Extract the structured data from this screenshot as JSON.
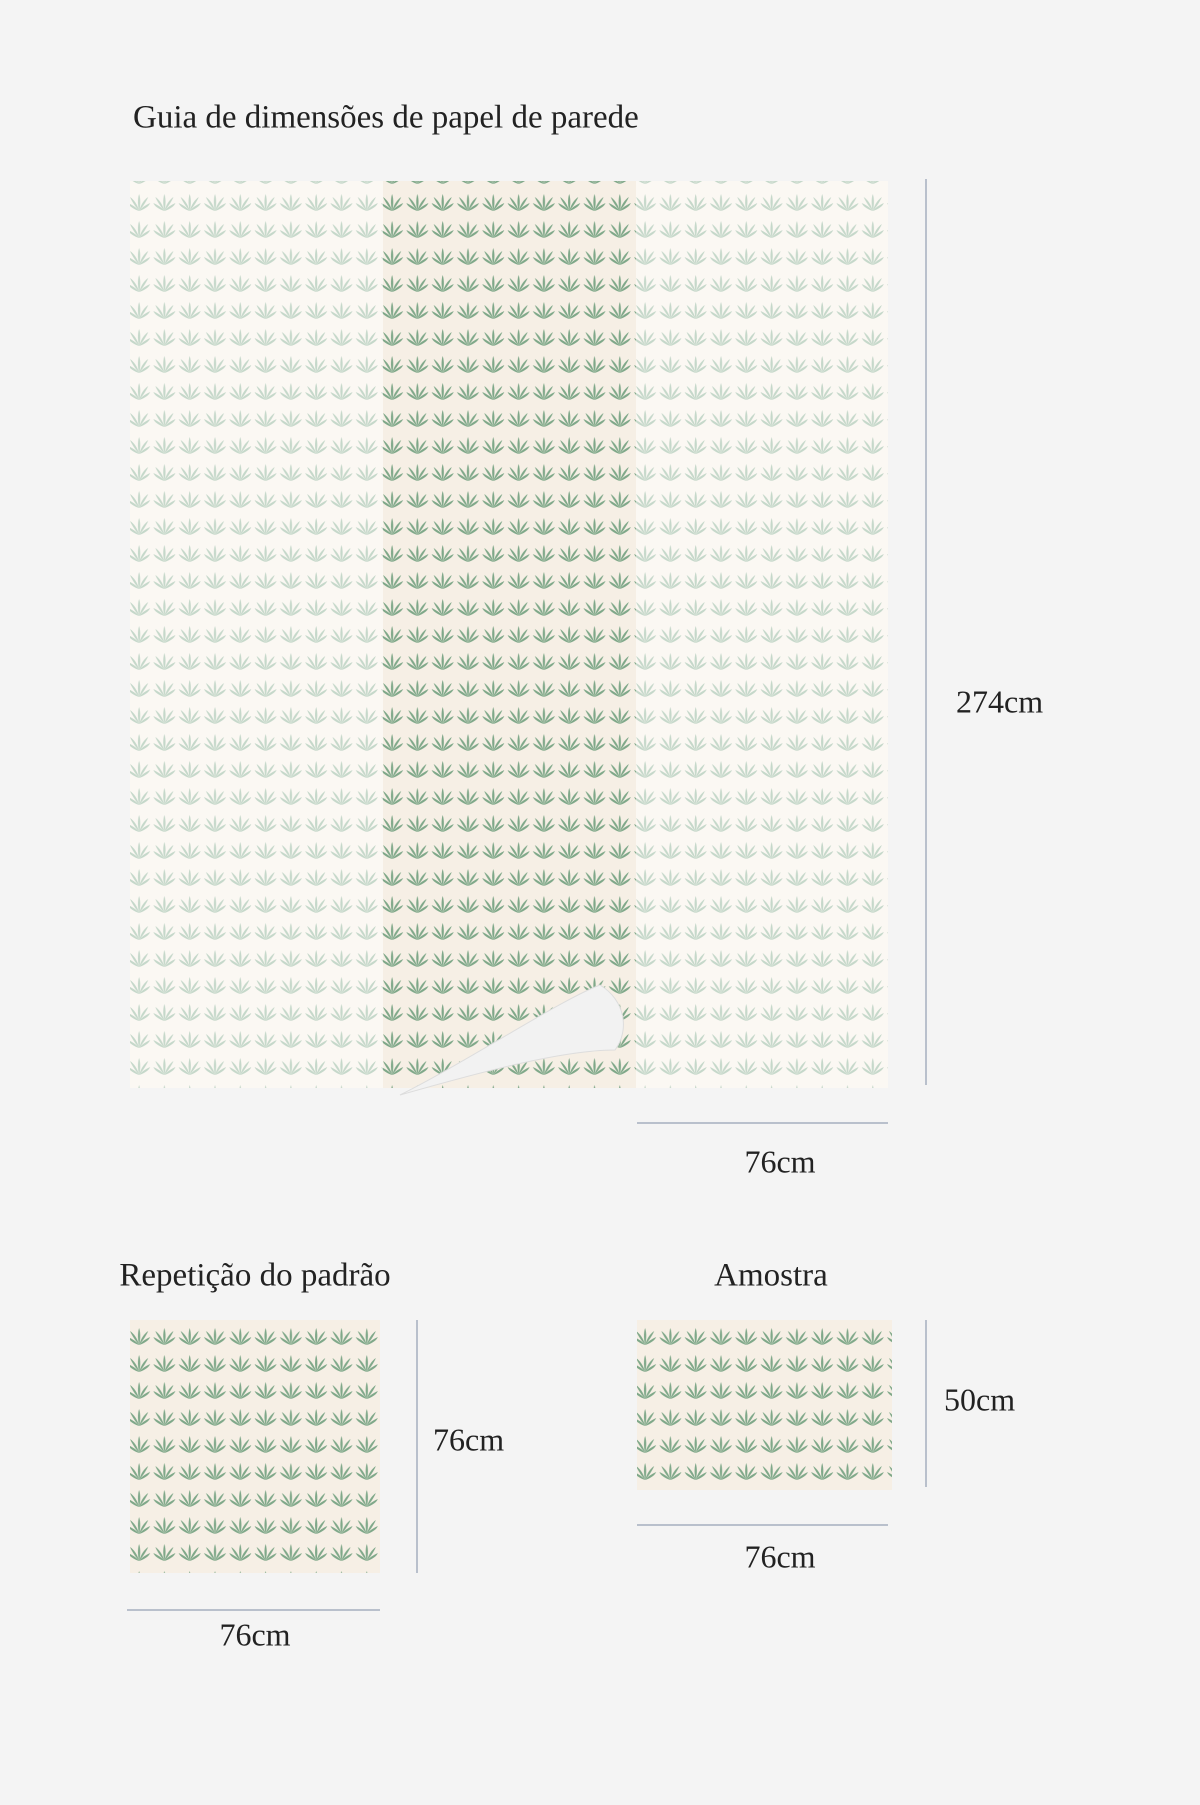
{
  "header": {
    "title": "Guia de dimensões de papel de parede"
  },
  "roll": {
    "height_label": "274cm",
    "width_label": "76cm"
  },
  "pattern_repeat": {
    "title": "Repetição do padrão",
    "height_label": "76cm",
    "width_label": "76cm"
  },
  "sample": {
    "title": "Amostra",
    "height_label": "50cm",
    "width_label": "76cm"
  }
}
